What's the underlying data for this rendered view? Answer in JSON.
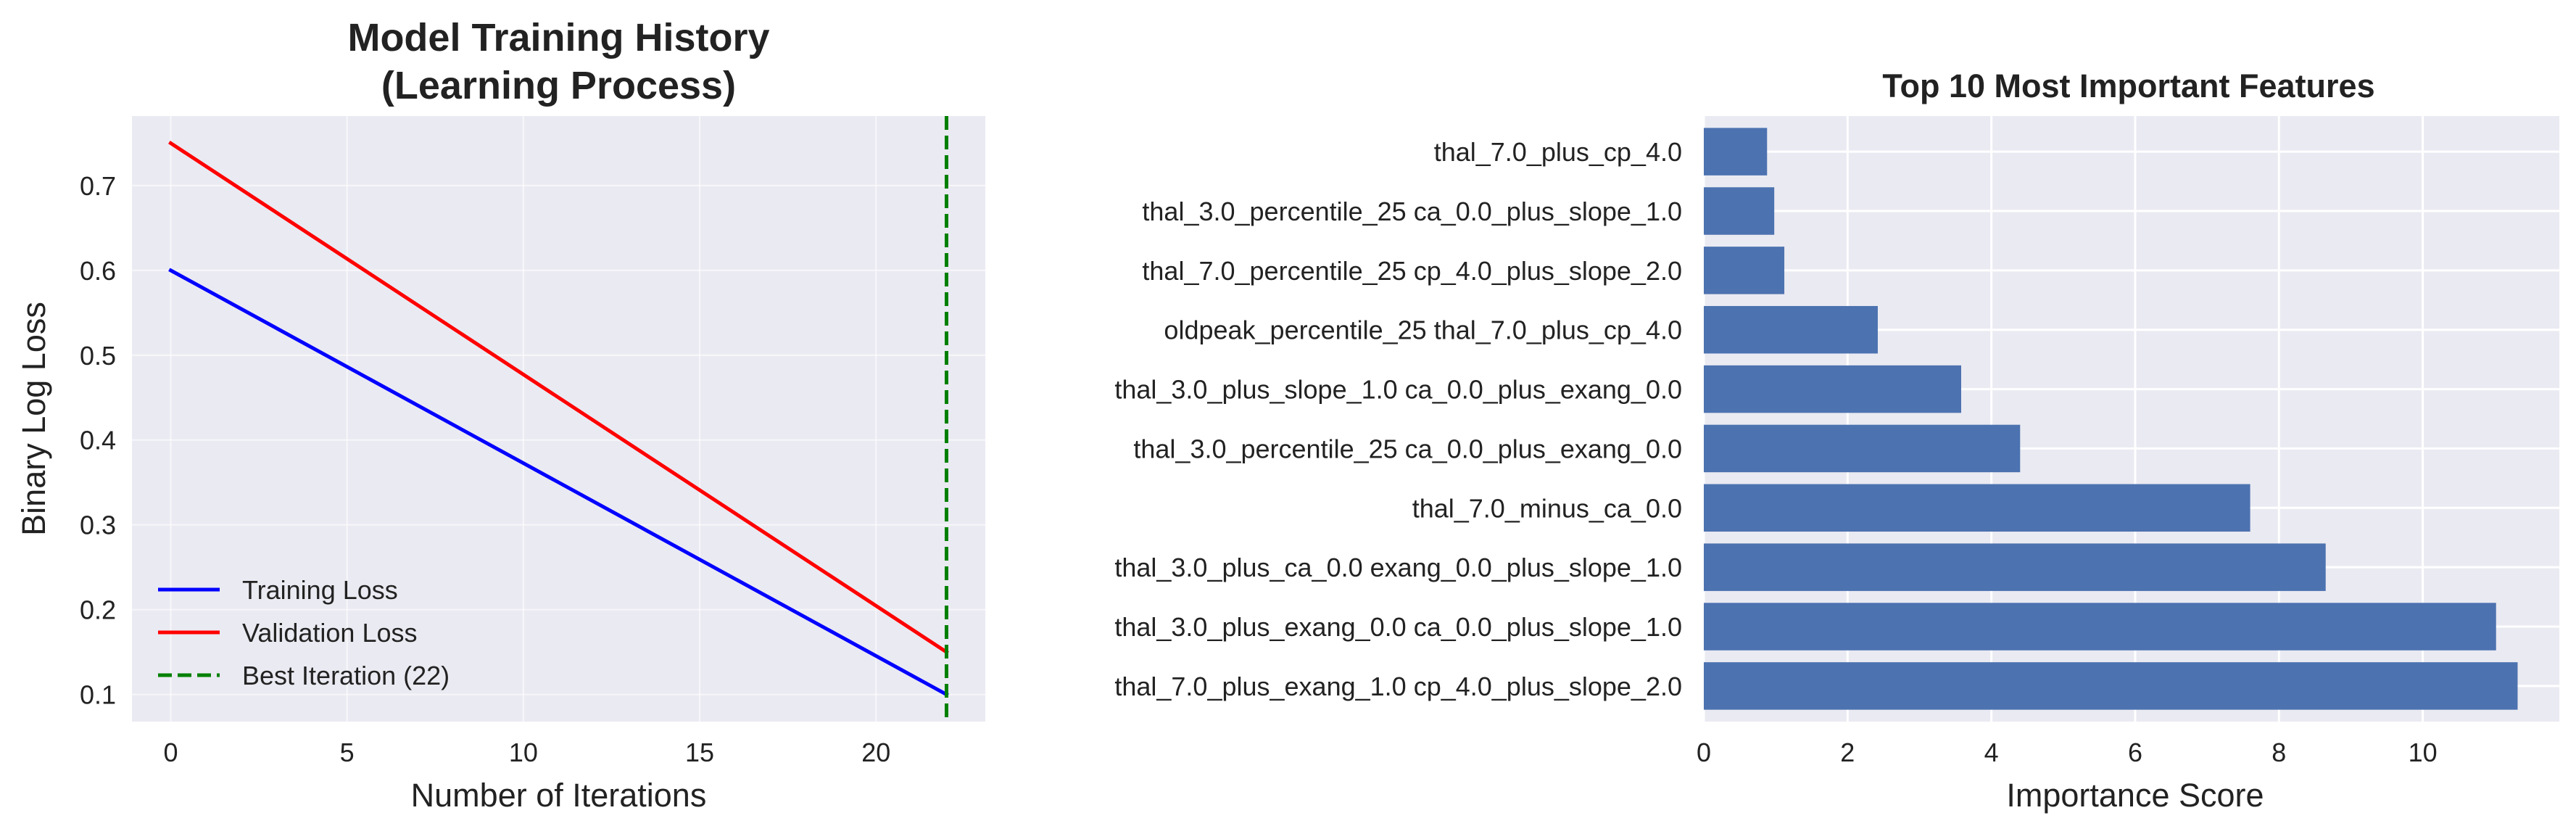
{
  "chart_data": [
    {
      "type": "line",
      "title": [
        "Model Training History",
        "(Learning Process)"
      ],
      "xlabel": "Number of Iterations",
      "ylabel": "Binary Log Loss",
      "xlim": [
        -1.1,
        23.1
      ],
      "ylim": [
        0.068,
        0.782
      ],
      "xticks": [
        0,
        5,
        10,
        15,
        20
      ],
      "xtick_labels": [
        "0",
        "5",
        "10",
        "15",
        "20"
      ],
      "yticks": [
        0.1,
        0.2,
        0.3,
        0.4,
        0.5,
        0.6,
        0.7
      ],
      "ytick_labels": [
        "0.1",
        "0.2",
        "0.3",
        "0.4",
        "0.5",
        "0.6",
        "0.7"
      ],
      "grid": true,
      "legend_position": "lower-left",
      "series": [
        {
          "name": "Training Loss",
          "x": [
            0,
            22
          ],
          "y": [
            0.6,
            0.1
          ],
          "color": "#0000ff",
          "style": "solid"
        },
        {
          "name": "Validation Loss",
          "x": [
            0,
            22
          ],
          "y": [
            0.75,
            0.15
          ],
          "color": "#ff0000",
          "style": "solid"
        }
      ],
      "vlines": [
        {
          "name": "Best Iteration (22)",
          "x": 22,
          "color": "#008000",
          "style": "dashed"
        }
      ]
    },
    {
      "type": "bar",
      "orientation": "horizontal",
      "title": "Top 10 Most Important Features",
      "xlabel": "Importance Score",
      "ylabel": "",
      "xlim": [
        0,
        11.9
      ],
      "xticks": [
        0,
        2,
        4,
        6,
        8,
        10
      ],
      "xtick_labels": [
        "0",
        "2",
        "4",
        "6",
        "8",
        "10"
      ],
      "grid": true,
      "bar_color": "#4c72b0",
      "categories": [
        "thal_7.0_plus_cp_4.0",
        "thal_3.0_percentile_25 ca_0.0_plus_slope_1.0",
        "thal_7.0_percentile_25 cp_4.0_plus_slope_2.0",
        "oldpeak_percentile_25 thal_7.0_plus_cp_4.0",
        "thal_3.0_plus_slope_1.0 ca_0.0_plus_exang_0.0",
        "thal_3.0_percentile_25 ca_0.0_plus_exang_0.0",
        "thal_7.0_minus_ca_0.0",
        "thal_3.0_plus_ca_0.0 exang_0.0_plus_slope_1.0",
        "thal_3.0_plus_exang_0.0 ca_0.0_plus_slope_1.0",
        "thal_7.0_plus_exang_1.0 cp_4.0_plus_slope_2.0"
      ],
      "values": [
        0.88,
        0.98,
        1.12,
        2.42,
        3.58,
        4.4,
        7.6,
        8.65,
        11.02,
        11.32
      ]
    }
  ]
}
